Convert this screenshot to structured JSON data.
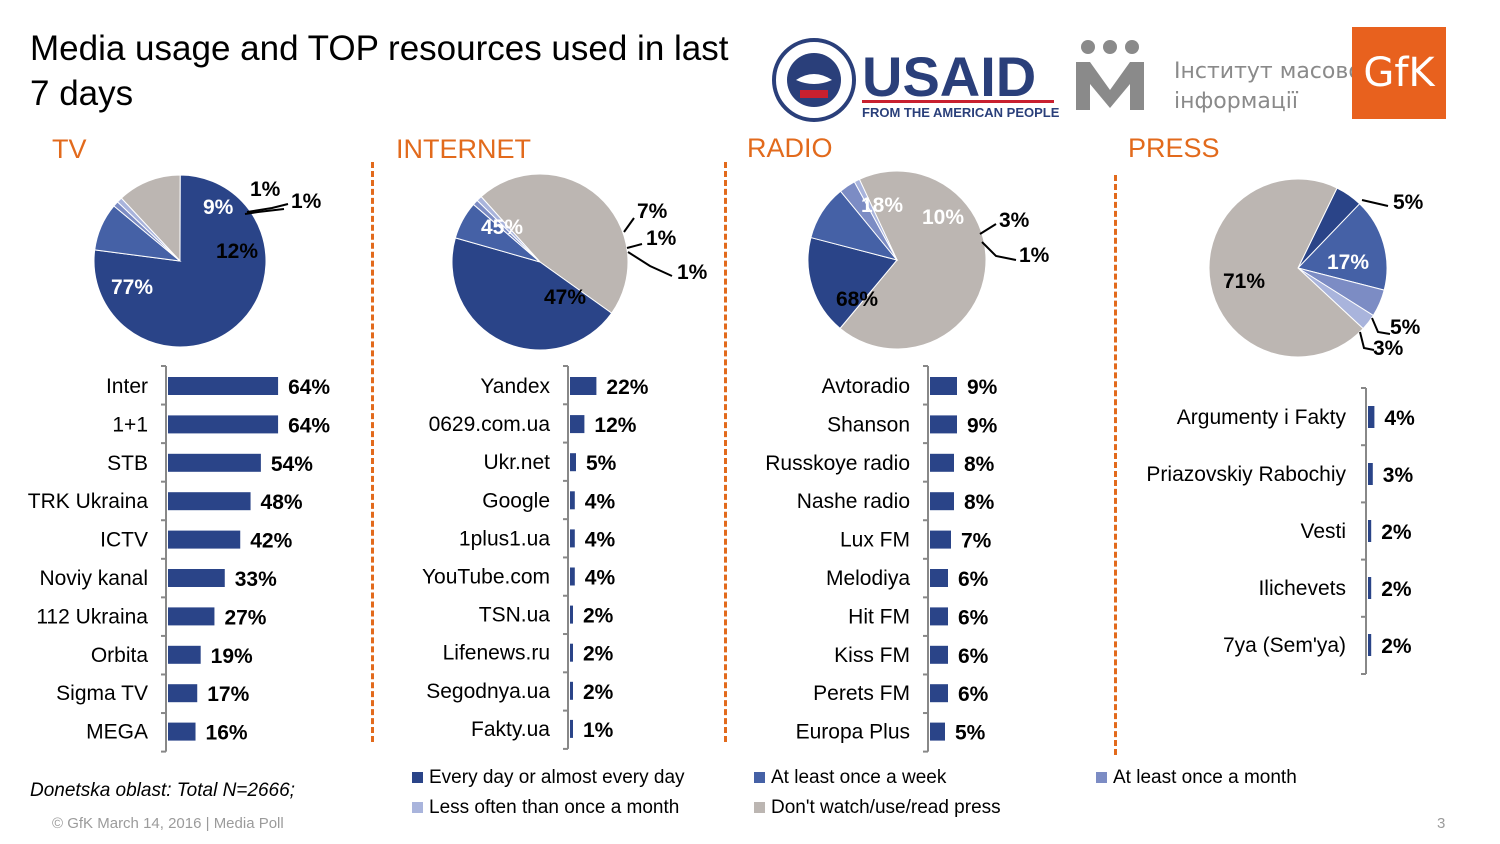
{
  "header": {
    "title": "Media usage and TOP resources used in last 7 days"
  },
  "logos": {
    "usaid_text": "USAID",
    "usaid_subtitle": "FROM THE AMERICAN PEOPLE",
    "imi_line1": "Інститут масової",
    "imi_line2": "інформації",
    "gfk_text": "GfK"
  },
  "colors": {
    "every_day": "#2a4488",
    "once_week": "#4561a6",
    "once_month": "#7c8cc4",
    "less_often": "#a9b4dc",
    "never": "#bcb6b2",
    "accent": "#e26a1c"
  },
  "chart_data": [
    {
      "type": "pie",
      "section": "TV",
      "slices": [
        {
          "category": "Every day or almost every day",
          "value": 77,
          "label": "77%"
        },
        {
          "category": "At least once a week",
          "value": 9,
          "label": "9%"
        },
        {
          "category": "At least once a month",
          "value": 1,
          "label": "1%"
        },
        {
          "category": "Less often than once a month",
          "value": 1,
          "label": "1%"
        },
        {
          "category": "Don't watch/use/read press",
          "value": 12,
          "label": "12%"
        }
      ]
    },
    {
      "type": "bar",
      "section": "TV",
      "categories": [
        "Inter",
        "1+1",
        "STB",
        "TRK Ukraina",
        "ICTV",
        "Noviy kanal",
        "112 Ukraina",
        "Orbita",
        "Sigma TV",
        "MEGA"
      ],
      "values": [
        64,
        64,
        54,
        48,
        42,
        33,
        27,
        19,
        17,
        16
      ],
      "labels": [
        "64%",
        "64%",
        "54%",
        "48%",
        "42%",
        "33%",
        "27%",
        "19%",
        "17%",
        "16%"
      ]
    },
    {
      "type": "pie",
      "section": "INTERNET",
      "slices": [
        {
          "category": "Every day or almost every day",
          "value": 45,
          "label": "45%"
        },
        {
          "category": "At least once a week",
          "value": 7,
          "label": "7%"
        },
        {
          "category": "At least once a month",
          "value": 1,
          "label": "1%"
        },
        {
          "category": "Less often than once a month",
          "value": 1,
          "label": "1%"
        },
        {
          "category": "Don't watch/use/read press",
          "value": 47,
          "label": "47%"
        }
      ]
    },
    {
      "type": "bar",
      "section": "INTERNET",
      "categories": [
        "Yandex",
        "0629.com.ua",
        "Ukr.net",
        "Google",
        "1plus1.ua",
        "YouTube.com",
        "TSN.ua",
        "Lifenews.ru",
        "Segodnya.ua",
        "Fakty.ua"
      ],
      "values": [
        22,
        12,
        5,
        4,
        4,
        4,
        2,
        2,
        2,
        1
      ],
      "labels": [
        "22%",
        "12%",
        "5%",
        "4%",
        "4%",
        "4%",
        "2%",
        "2%",
        "2%",
        "1%"
      ]
    },
    {
      "type": "pie",
      "section": "RADIO",
      "slices": [
        {
          "category": "Every day or almost every day",
          "value": 18,
          "label": "18%"
        },
        {
          "category": "At least once a week",
          "value": 10,
          "label": "10%"
        },
        {
          "category": "At least once a month",
          "value": 3,
          "label": "3%"
        },
        {
          "category": "Less often than once a month",
          "value": 1,
          "label": "1%"
        },
        {
          "category": "Don't watch/use/read press",
          "value": 68,
          "label": "68%"
        }
      ]
    },
    {
      "type": "bar",
      "section": "RADIO",
      "categories": [
        "Avtoradio",
        "Shanson",
        "Russkoye radio",
        "Nashe radio",
        "Lux FM",
        "Melodiya",
        "Hit FM",
        "Kiss FM",
        "Perets FM",
        "Europa Plus"
      ],
      "values": [
        9,
        9,
        8,
        8,
        7,
        6,
        6,
        6,
        6,
        5
      ],
      "labels": [
        "9%",
        "9%",
        "8%",
        "8%",
        "7%",
        "6%",
        "6%",
        "6%",
        "6%",
        "5%"
      ]
    },
    {
      "type": "pie",
      "section": "PRESS",
      "slices": [
        {
          "category": "Every day or almost every day",
          "value": 5,
          "label": "5%"
        },
        {
          "category": "At least once a week",
          "value": 17,
          "label": "17%"
        },
        {
          "category": "At least once a month",
          "value": 5,
          "label": "5%"
        },
        {
          "category": "Less often than once a month",
          "value": 3,
          "label": "3%"
        },
        {
          "category": "Don't watch/use/read press",
          "value": 71,
          "label": "71%"
        }
      ]
    },
    {
      "type": "bar",
      "section": "PRESS",
      "categories": [
        "Argumenty i Fakty",
        "Priazovskiy Rabochiy",
        "Vesti",
        "Ilichevets",
        "7ya (Sem'ya)"
      ],
      "values": [
        4,
        3,
        2,
        2,
        2
      ],
      "labels": [
        "4%",
        "3%",
        "2%",
        "2%",
        "2%"
      ]
    }
  ],
  "sections": {
    "tv": "TV",
    "internet": "INTERNET",
    "radio": "RADIO",
    "press": "PRESS"
  },
  "legend": {
    "every_day": "Every day or almost every day",
    "once_week": "At least once a week",
    "once_month": "At least once a month",
    "less_often": "Less often than once a month",
    "never": "Don't watch/use/read press"
  },
  "footer": {
    "note": "Donetska oblast: Total N=2666;",
    "copyright": "© GfK March 14, 2016 | Media Poll",
    "page": "3"
  }
}
